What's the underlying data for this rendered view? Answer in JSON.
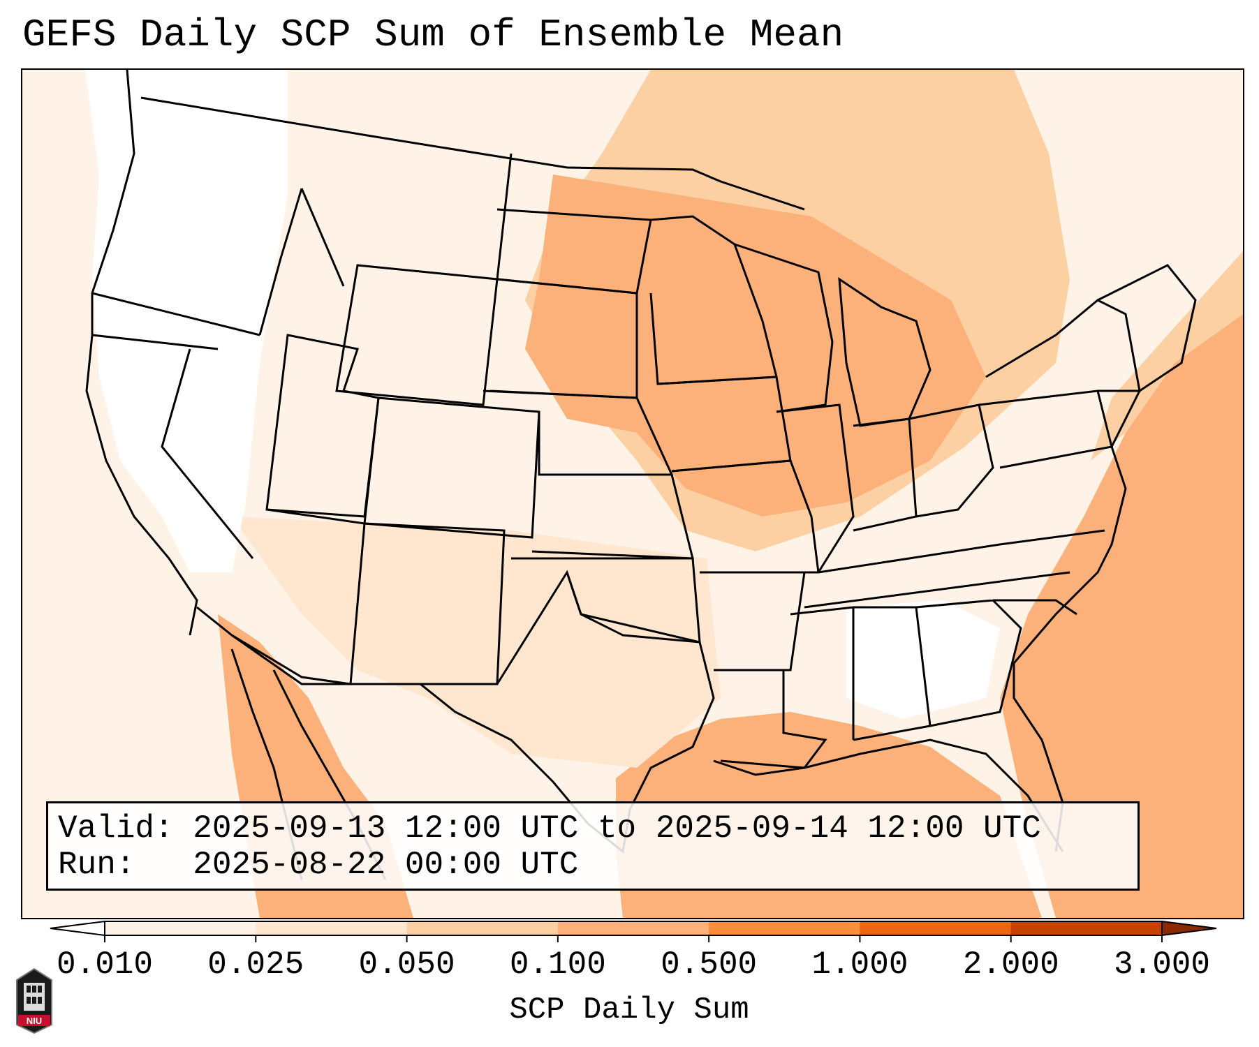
{
  "title": "GEFS Daily SCP Sum of Ensemble Mean",
  "info": {
    "valid_label": "Valid:",
    "valid_value": "2025-09-13 12:00 UTC to 2025-09-14 12:00 UTC",
    "run_label": "Run:",
    "run_value": "2025-08-22 00:00 UTC"
  },
  "colorbar": {
    "title": "SCP Daily Sum",
    "ticks": [
      "0.010",
      "0.025",
      "0.050",
      "0.100",
      "0.500",
      "1.000",
      "2.000",
      "3.000"
    ],
    "colors": [
      "#fff3e8",
      "#fee6cf",
      "#fdd0a3",
      "#fcb17a",
      "#f88d3e",
      "#ee6510",
      "#c94100"
    ],
    "under_color": "#ffffff",
    "over_color": "#8a2a00"
  },
  "map": {
    "region": "Contiguous United States",
    "background_color": "#fff3e8",
    "ocean_color": "#fcb17a",
    "gulf_color": "#fcb17a",
    "west_coast_color": "#ffffff",
    "boundary_color": "#000000"
  },
  "logo": {
    "text": "NIU"
  }
}
